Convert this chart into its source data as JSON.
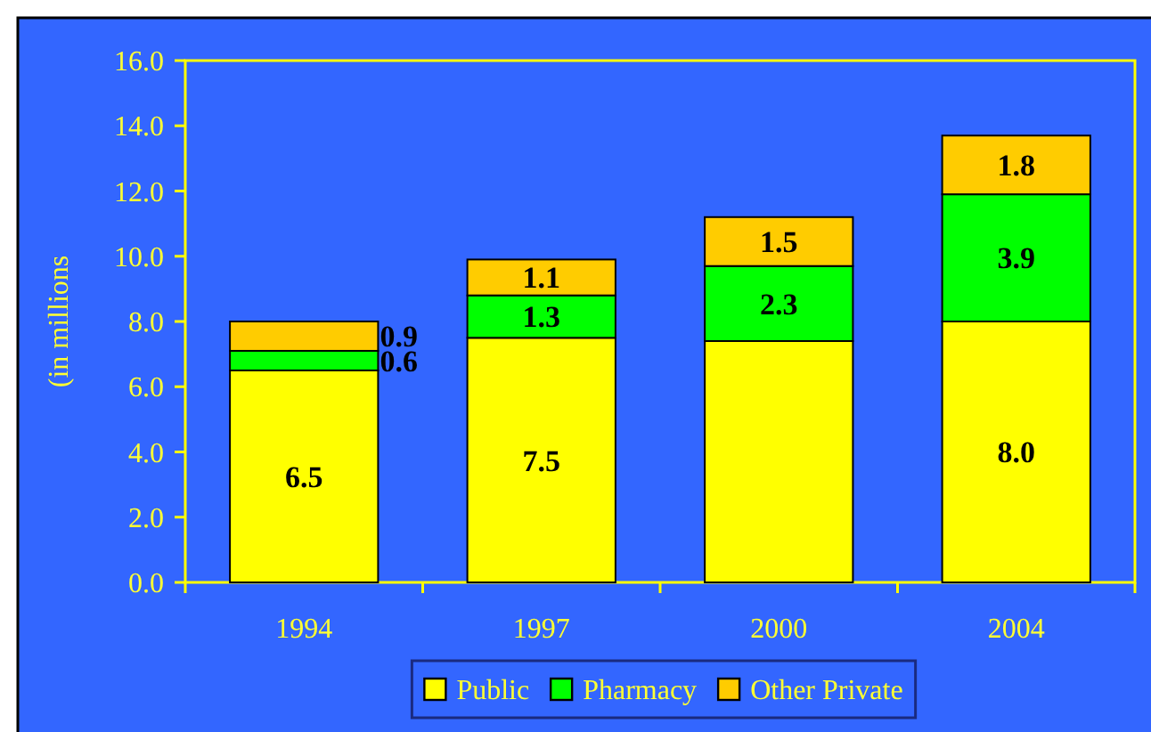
{
  "chart_data": {
    "type": "bar",
    "ylabel": "(in millions",
    "categories": [
      "1994",
      "1997",
      "2000",
      "2004"
    ],
    "stacked": true,
    "series": [
      {
        "name": "Public",
        "color": "#ffff00",
        "values": [
          6.5,
          7.5,
          7.4,
          8.0
        ],
        "value_labels": [
          "6.5",
          "7.5",
          null,
          "8.0"
        ]
      },
      {
        "name": "Pharmacy",
        "color": "#00ff00",
        "values": [
          0.6,
          1.3,
          2.3,
          3.9
        ],
        "value_labels": [
          "0.6",
          "1.3",
          "2.3",
          "3.9"
        ]
      },
      {
        "name": "Other Private",
        "color": "#ffcc00",
        "values": [
          0.9,
          1.1,
          1.5,
          1.8
        ],
        "value_labels": [
          "0.9",
          "1.1",
          "1.5",
          "1.8"
        ]
      }
    ],
    "ylim": [
      0,
      16
    ],
    "yticks": [
      {
        "value": 0,
        "label": "0.0"
      },
      {
        "value": 2,
        "label": "2.0"
      },
      {
        "value": 4,
        "label": "4.0"
      },
      {
        "value": 6,
        "label": "6.0"
      },
      {
        "value": 8,
        "label": "8.0"
      },
      {
        "value": 10,
        "label": "10.0"
      },
      {
        "value": 12,
        "label": "12.0"
      },
      {
        "value": 14,
        "label": "14.0"
      },
      {
        "value": 16,
        "label": "16.0"
      }
    ],
    "legend": "bottom"
  }
}
